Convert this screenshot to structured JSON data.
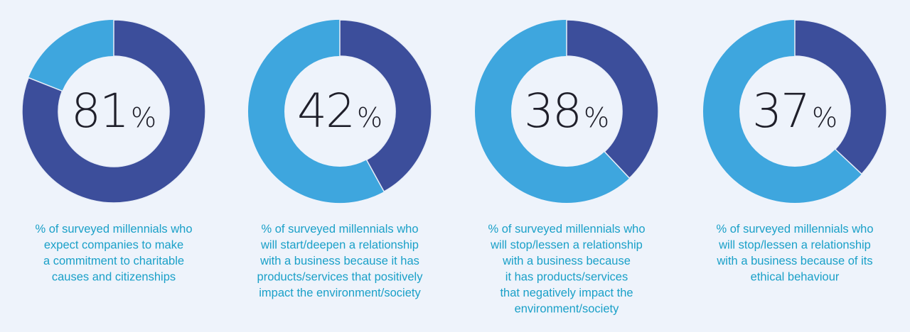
{
  "chart_data": [
    {
      "type": "donut",
      "values": [
        81
      ],
      "value_labels": [
        "81"
      ],
      "unit": "%",
      "color": "#3c4e9b",
      "track_color": "#3ea6de",
      "caption": [
        "% of surveyed millennials who",
        "expect companies to make",
        "a commitment to charitable",
        "causes and citizenships"
      ]
    },
    {
      "type": "donut",
      "values": [
        42
      ],
      "value_labels": [
        "42"
      ],
      "unit": "%",
      "color": "#3c4e9b",
      "track_color": "#3ea6de",
      "caption": [
        "% of surveyed millennials who",
        "will start/deepen a relationship",
        "with a business because it has",
        "products/services that positively",
        "impact the environment/society"
      ]
    },
    {
      "type": "donut",
      "values": [
        38
      ],
      "value_labels": [
        "38"
      ],
      "unit": "%",
      "color": "#3c4e9b",
      "track_color": "#3ea6de",
      "caption": [
        "% of surveyed millennials who",
        "will stop/lessen a relationship",
        "with a business because",
        "it has products/services",
        "that negatively impact the",
        "environment/society"
      ]
    },
    {
      "type": "donut",
      "values": [
        37
      ],
      "value_labels": [
        "37"
      ],
      "unit": "%",
      "color": "#3c4e9b",
      "track_color": "#3ea6de",
      "caption": [
        "% of surveyed millennials who",
        "will stop/lessen a relationship",
        "with a business because of its",
        "ethical behaviour"
      ]
    }
  ]
}
